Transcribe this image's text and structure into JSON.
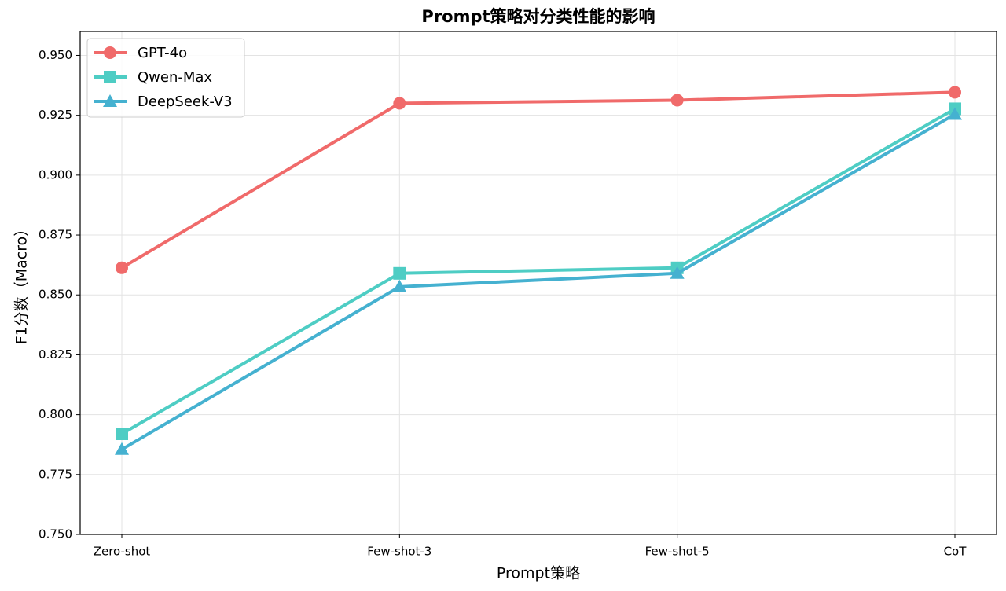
{
  "chart_data": {
    "type": "line",
    "title": "Prompt策略对分类性能的影响",
    "xlabel": "Prompt策略",
    "ylabel": "F1分数（Macro）",
    "categories": [
      "Zero-shot",
      "Few-shot-3",
      "Few-shot-5",
      "CoT"
    ],
    "series": [
      {
        "name": "GPT-4o",
        "color": "#f06a6a",
        "marker": "circle",
        "values": [
          0.8613,
          0.93,
          0.9313,
          0.9346
        ]
      },
      {
        "name": "Qwen-Max",
        "color": "#4ecdc4",
        "marker": "square",
        "values": [
          0.792,
          0.859,
          0.8613,
          0.9277
        ]
      },
      {
        "name": "DeepSeek-V3",
        "color": "#45b1d0",
        "marker": "triangle",
        "values": [
          0.7855,
          0.8534,
          0.859,
          0.9254
        ]
      }
    ],
    "ylim": [
      0.75,
      0.96
    ],
    "yticks": [
      {
        "value": 0.75,
        "label": "0.750"
      },
      {
        "value": 0.775,
        "label": "0.775"
      },
      {
        "value": 0.8,
        "label": "0.800"
      },
      {
        "value": 0.825,
        "label": "0.825"
      },
      {
        "value": 0.85,
        "label": "0.850"
      },
      {
        "value": 0.875,
        "label": "0.875"
      },
      {
        "value": 0.9,
        "label": "0.900"
      },
      {
        "value": 0.925,
        "label": "0.925"
      },
      {
        "value": 0.95,
        "label": "0.950"
      }
    ],
    "grid": true,
    "legend": "upper-left"
  }
}
